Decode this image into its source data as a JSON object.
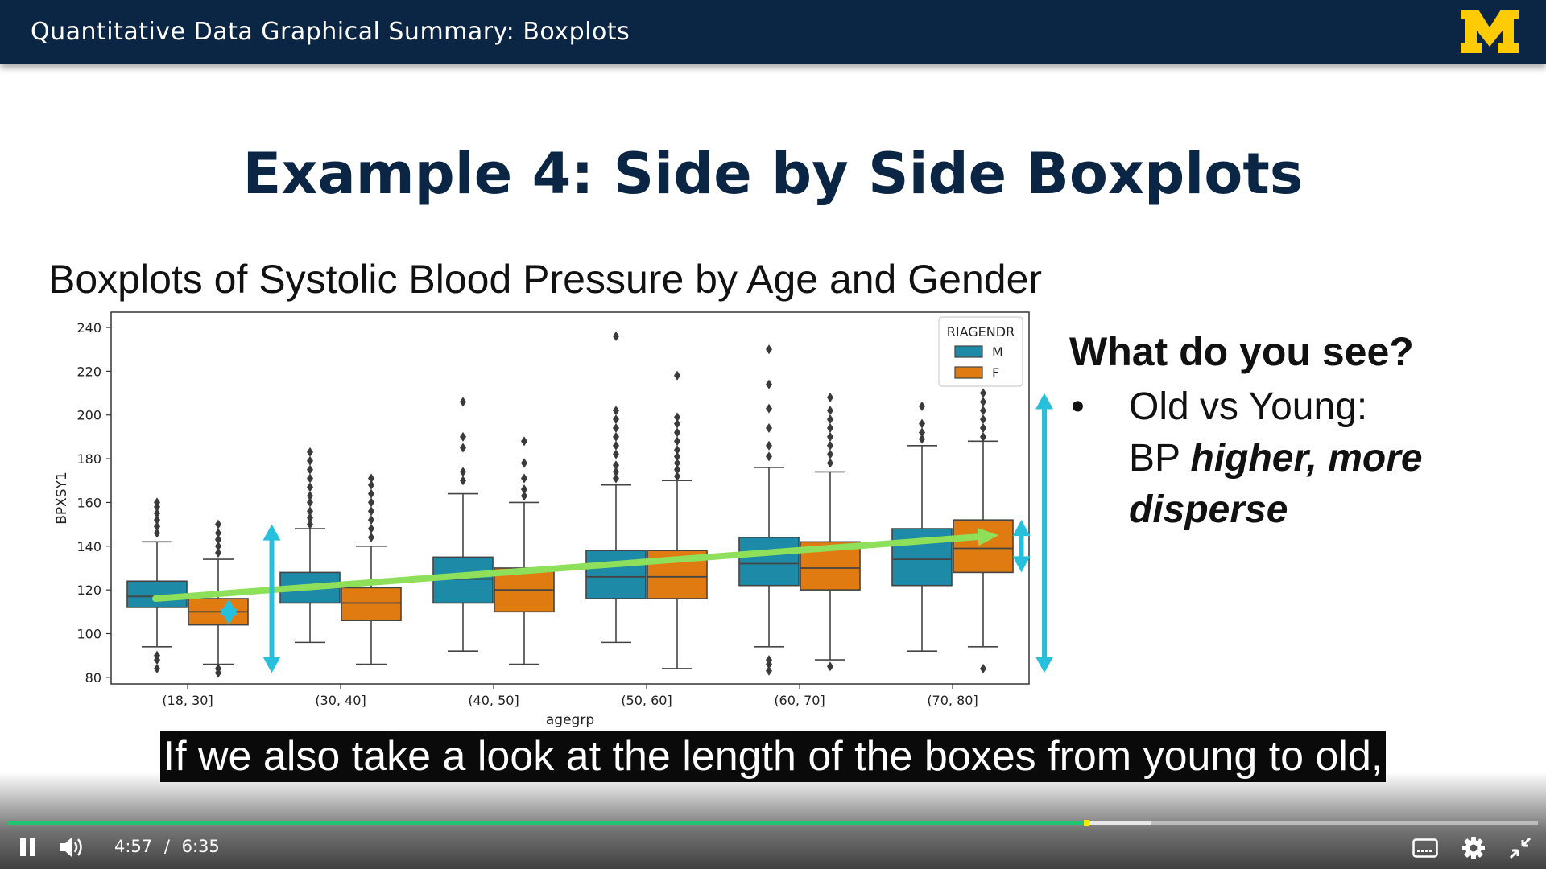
{
  "header": {
    "title": "Quantitative Data Graphical Summary: Boxplots"
  },
  "slide": {
    "title": "Example 4: Side by Side Boxplots",
    "plot_title": "Boxplots of Systolic Blood Pressure by Age and Gender",
    "side_heading": "What do you see?",
    "bullet_symbol": "•",
    "bullet_line1": "Old vs Young:",
    "bullet_line2_plain": "BP ",
    "bullet_line2_emph": "higher, more",
    "bullet_line3_emph": "disperse"
  },
  "chart_data": {
    "type": "boxplot",
    "xlabel": "agegrp",
    "ylabel": "BPXSY1",
    "ylim": [
      77,
      247
    ],
    "yticks": [
      80,
      100,
      120,
      140,
      160,
      180,
      200,
      220,
      240
    ],
    "categories": [
      "(18, 30]",
      "(30, 40]",
      "(40, 50]",
      "(50, 60]",
      "(60, 70]",
      "(70, 80]"
    ],
    "legend": {
      "title": "RIAGENDR",
      "placement": "top-right"
    },
    "series": [
      {
        "name": "M",
        "color": "#1d8aa8",
        "boxes": [
          {
            "whislo": 94,
            "q1": 112,
            "med": 117,
            "q3": 124,
            "whishi": 142,
            "fliers": [
              84,
              88,
              90,
              146,
              149,
              152,
              155,
              158,
              160
            ]
          },
          {
            "whislo": 96,
            "q1": 114,
            "med": 121,
            "q3": 128,
            "whishi": 148,
            "fliers": [
              150,
              153,
              156,
              160,
              163,
              167,
              171,
              175,
              179,
              183
            ]
          },
          {
            "whislo": 92,
            "q1": 114,
            "med": 125,
            "q3": 135,
            "whishi": 164,
            "fliers": [
              170,
              174,
              185,
              190,
              206
            ]
          },
          {
            "whislo": 96,
            "q1": 116,
            "med": 126,
            "q3": 138,
            "whishi": 168,
            "fliers": [
              171,
              174,
              177,
              182,
              186,
              190,
              194,
              198,
              202,
              236
            ]
          },
          {
            "whislo": 94,
            "q1": 122,
            "med": 132,
            "q3": 144,
            "whishi": 176,
            "fliers": [
              83,
              86,
              88,
              181,
              186,
              194,
              203,
              214,
              230
            ]
          },
          {
            "whislo": 92,
            "q1": 122,
            "med": 134,
            "q3": 148,
            "whishi": 186,
            "fliers": [
              189,
              192,
              196,
              204
            ]
          }
        ]
      },
      {
        "name": "F",
        "color": "#e07b12",
        "boxes": [
          {
            "whislo": 86,
            "q1": 104,
            "med": 110,
            "q3": 116,
            "whishi": 134,
            "fliers": [
              82,
              84,
              137,
              140,
              143,
              146,
              150
            ]
          },
          {
            "whislo": 86,
            "q1": 106,
            "med": 114,
            "q3": 121,
            "whishi": 140,
            "fliers": [
              144,
              148,
              152,
              156,
              160,
              164,
              168,
              171
            ]
          },
          {
            "whislo": 86,
            "q1": 110,
            "med": 120,
            "q3": 130,
            "whishi": 160,
            "fliers": [
              163,
              166,
              171,
              178,
              188
            ]
          },
          {
            "whislo": 84,
            "q1": 116,
            "med": 126,
            "q3": 138,
            "whishi": 170,
            "fliers": [
              172,
              175,
              178,
              181,
              184,
              188,
              192,
              196,
              199,
              218
            ]
          },
          {
            "whislo": 88,
            "q1": 120,
            "med": 130,
            "q3": 142,
            "whishi": 174,
            "fliers": [
              85,
              178,
              182,
              186,
              190,
              194,
              198,
              202,
              208
            ]
          },
          {
            "whislo": 94,
            "q1": 128,
            "med": 139,
            "q3": 152,
            "whishi": 188,
            "fliers": [
              84,
              190,
              194,
              198,
              202,
              206,
              210
            ]
          }
        ]
      }
    ],
    "annotations": {
      "trend_arrow": {
        "from": [
          0,
          116
        ],
        "to": [
          5.45,
          145
        ],
        "color": "#8ee05a"
      },
      "spread_arrows": [
        {
          "x": 0.27,
          "ymin": 104,
          "ymax": 116,
          "color": "#27c0dc"
        },
        {
          "x": 0.55,
          "ymin": 82,
          "ymax": 150,
          "color": "#27c0dc"
        },
        {
          "x": 5.45,
          "ymin": 128,
          "ymax": 152,
          "color": "#27c0dc"
        },
        {
          "x": 5.6,
          "ymin": 82,
          "ymax": 210,
          "color": "#27c0dc"
        }
      ]
    }
  },
  "caption": "If we also take a look at the length of the boxes from young to old,",
  "player": {
    "current_time": "4:57",
    "separator": "/",
    "duration": "6:35",
    "progress": 0.7049,
    "buffered": 0.7469,
    "accent_color": "#22c56f",
    "icons": [
      "pause-icon",
      "volume-icon",
      "captions-icon",
      "settings-icon",
      "exit-fullscreen-icon"
    ]
  }
}
